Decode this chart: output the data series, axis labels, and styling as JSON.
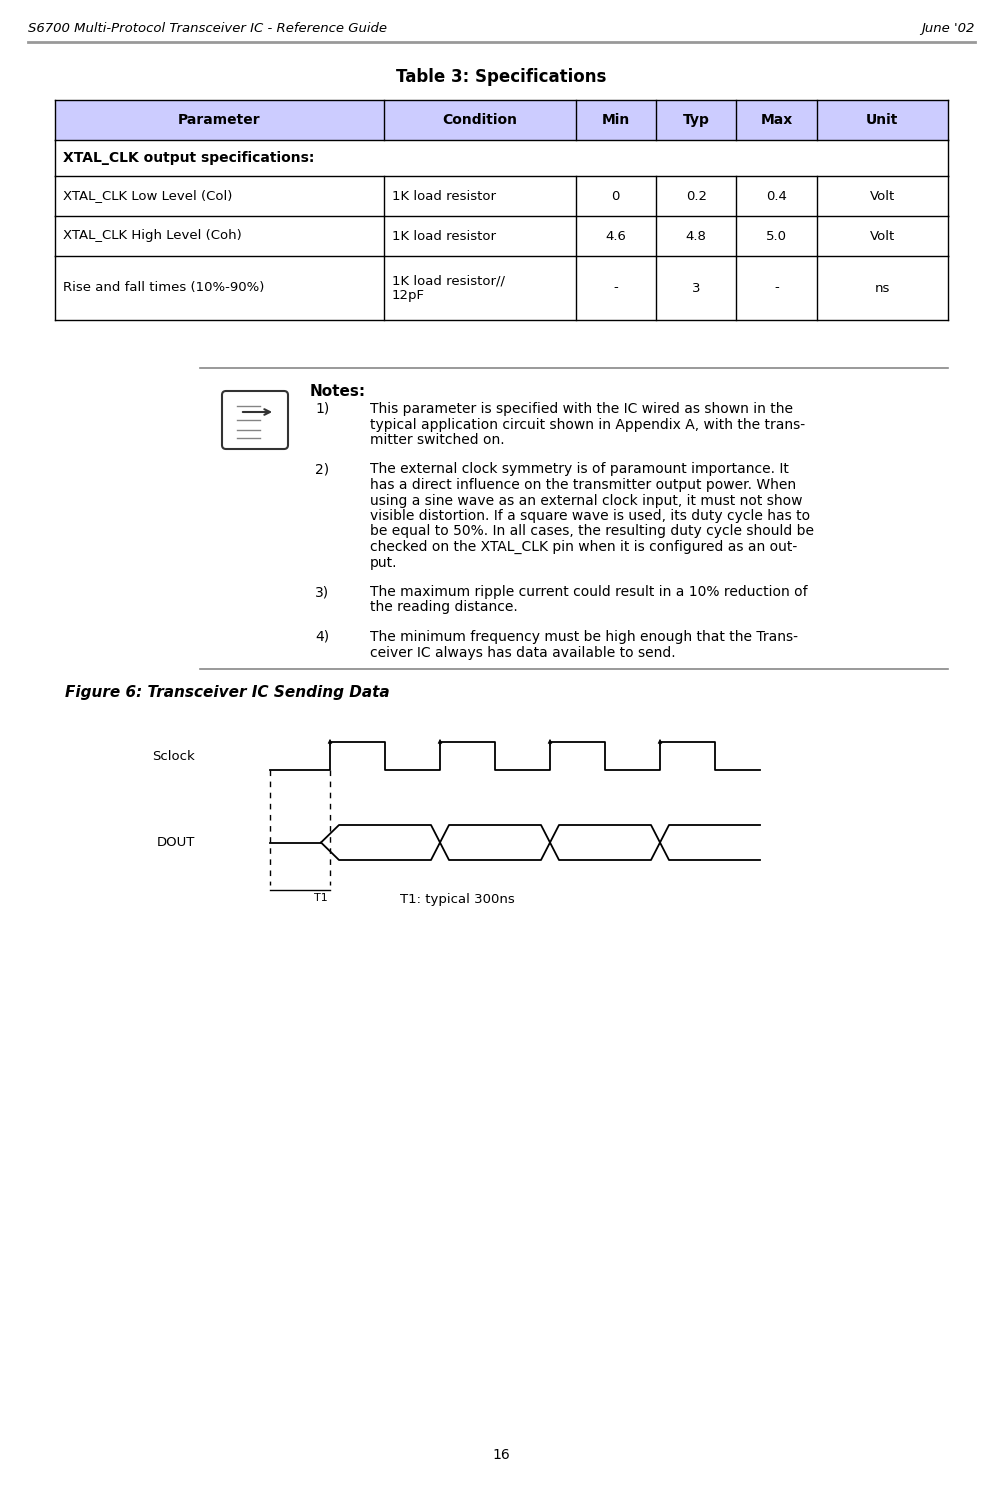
{
  "header_left": "S6700 Multi-Protocol Transceiver IC - Reference Guide",
  "header_right": "June '02",
  "table_title": "Table 3: Specifications",
  "table_header": [
    "Parameter",
    "Condition",
    "Min",
    "Typ",
    "Max",
    "Unit"
  ],
  "table_header_bg": "#ccccff",
  "section_row": "XTAL_CLK output specifications:",
  "table_rows": [
    [
      "XTAL_CLK Low Level (Col)",
      "1K load resistor",
      "0",
      "0.2",
      "0.4",
      "Volt"
    ],
    [
      "XTAL_CLK High Level (Coh)",
      "1K load resistor",
      "4.6",
      "4.8",
      "5.0",
      "Volt"
    ],
    [
      "Rise and fall times (10%-90%)",
      "1K load resistor//\n12pF",
      "-",
      "3",
      "-",
      "ns"
    ]
  ],
  "notes_title": "Notes:",
  "figure_caption": "Figure 6: Transceiver IC Sending Data",
  "signal_labels": [
    "Sclock",
    "DOUT"
  ],
  "t1_label": "T1",
  "t1_desc": "T1: typical 300ns",
  "page_number": "16",
  "bg_color": "#ffffff",
  "header_line_color": "#999999",
  "table_border_color": "#000000",
  "text_color": "#000000",
  "note_contents": [
    [
      1,
      [
        "This parameter is specified with the IC wired as shown in the",
        "typical application circuit shown in Appendix A, with the trans-",
        "mitter switched on."
      ]
    ],
    [
      2,
      [
        "The external clock symmetry is of paramount importance. It",
        "has a direct influence on the transmitter output power. When",
        "using a sine wave as an external clock input, it must not show",
        "visible distortion. If a square wave is used, its duty cycle has to",
        "be equal to 50%. In all cases, the resulting duty cycle should be",
        "checked on the XTAL_CLK pin when it is configured as an out-",
        "put."
      ]
    ],
    [
      3,
      [
        "The maximum ripple current could result in a 10% reduction of",
        "the reading distance."
      ]
    ],
    [
      4,
      [
        "The minimum frequency must be high enough that the Trans-",
        "ceiver IC always has data available to send."
      ]
    ]
  ]
}
